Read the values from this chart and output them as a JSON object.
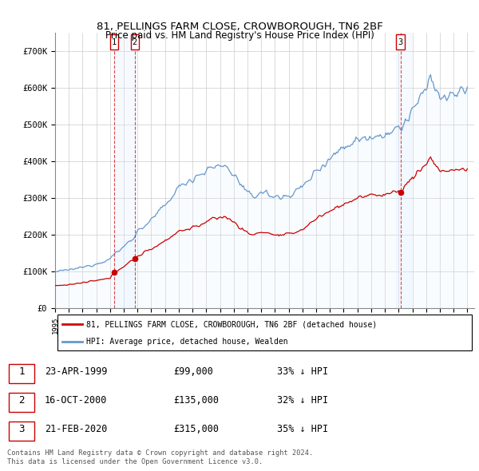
{
  "title": "81, PELLINGS FARM CLOSE, CROWBOROUGH, TN6 2BF",
  "subtitle": "Price paid vs. HM Land Registry's House Price Index (HPI)",
  "ylim": [
    0,
    750000
  ],
  "yticks": [
    0,
    100000,
    200000,
    300000,
    400000,
    500000,
    600000,
    700000
  ],
  "xlim_start": 1995.0,
  "xlim_end": 2025.5,
  "sale_events": [
    {
      "num": 1,
      "date": "23-APR-1999",
      "date_x": 1999.31,
      "price": 99000,
      "hpi_pct": "33% ↓ HPI"
    },
    {
      "num": 2,
      "date": "16-OCT-2000",
      "date_x": 2000.79,
      "price": 135000,
      "hpi_pct": "32% ↓ HPI"
    },
    {
      "num": 3,
      "date": "21-FEB-2020",
      "date_x": 2020.13,
      "price": 315000,
      "hpi_pct": "35% ↓ HPI"
    }
  ],
  "legend_property_label": "81, PELLINGS FARM CLOSE, CROWBOROUGH, TN6 2BF (detached house)",
  "legend_hpi_label": "HPI: Average price, detached house, Wealden",
  "copyright_text": "Contains HM Land Registry data © Crown copyright and database right 2024.\nThis data is licensed under the Open Government Licence v3.0.",
  "property_line_color": "#cc0000",
  "hpi_line_color": "#6699cc",
  "hpi_fill_color": "#ddeeff",
  "dashed_line_color": "#cc0000",
  "box_outline_color": "#cc0000",
  "background_color": "#ffffff",
  "grid_color": "#cccccc",
  "sale_dot_color": "#cc0000",
  "shade_fill_color": "#ddeeff"
}
